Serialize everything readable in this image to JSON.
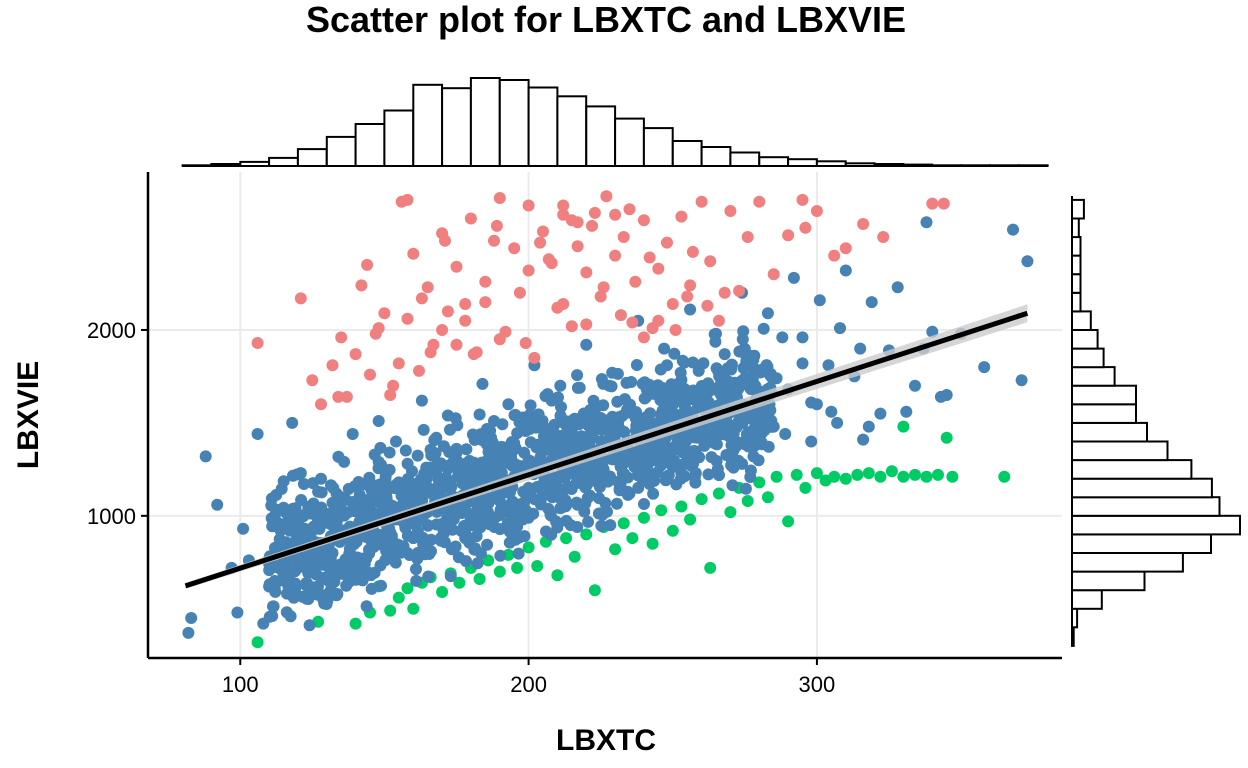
{
  "chart_data": {
    "type": "scatter",
    "title": "Scatter plot for LBXTC and LBXVIE",
    "xlabel": "LBXTC",
    "ylabel": "LBXVIE",
    "xlim": [
      68,
      385
    ],
    "ylim": [
      235,
      2850
    ],
    "x_ticks": [
      100,
      200,
      300
    ],
    "y_ticks": [
      1000,
      2000
    ],
    "grid": true,
    "legend": "none",
    "colors": {
      "high": "#f08080",
      "mid": "#4682b4",
      "low": "#00cc66",
      "regression": "#000000",
      "confidence_band": "#cccccc"
    },
    "regression_line": {
      "x": [
        81,
        373
      ],
      "y": [
        623,
        2090
      ]
    },
    "marginal_x_histogram": {
      "bin_edges": [
        80,
        90,
        100,
        110,
        120,
        130,
        140,
        150,
        160,
        170,
        180,
        190,
        200,
        210,
        220,
        230,
        240,
        250,
        260,
        270,
        280,
        290,
        300,
        310,
        320,
        330,
        340,
        350,
        360,
        370,
        380
      ],
      "counts": [
        1,
        3,
        6,
        12,
        25,
        43,
        62,
        82,
        120,
        115,
        130,
        127,
        116,
        103,
        88,
        70,
        56,
        37,
        28,
        20,
        13,
        10,
        7,
        4,
        3,
        2,
        1,
        1,
        1,
        1
      ]
    },
    "marginal_y_histogram": {
      "bin_edges": [
        300,
        400,
        500,
        600,
        700,
        800,
        900,
        1000,
        1100,
        1200,
        1300,
        1400,
        1500,
        1600,
        1700,
        1800,
        1900,
        2000,
        2100,
        2200,
        2300,
        2400,
        2500,
        2600,
        2700
      ],
      "counts": [
        2,
        6,
        35,
        85,
        130,
        163,
        197,
        173,
        164,
        140,
        112,
        88,
        75,
        75,
        50,
        37,
        30,
        22,
        10,
        10,
        10,
        10,
        8,
        14
      ]
    },
    "series": [
      {
        "group": "high",
        "x": [
          106,
          121,
          125,
          128,
          132,
          135,
          137,
          140,
          142,
          145,
          147,
          150,
          152,
          155,
          156,
          158,
          160,
          162,
          165,
          167,
          170,
          172,
          175,
          178,
          180,
          182,
          185,
          188,
          190,
          192,
          195,
          197,
          200,
          202,
          205,
          207,
          210,
          212,
          215,
          217,
          220,
          222,
          225,
          227,
          230,
          232,
          235,
          237,
          240,
          243,
          245,
          248,
          250,
          253,
          256,
          260,
          263,
          266,
          270,
          273,
          276,
          280,
          285,
          290,
          295,
          300,
          306,
          310,
          316,
          323,
          340,
          344,
          158,
          170,
          185,
          200,
          212,
          230,
          245,
          175,
          190,
          220,
          240,
          255,
          144,
          163,
          181,
          199,
          226,
          251,
          268,
          134,
          148,
          166,
          178,
          208,
          236,
          262,
          296,
          153,
          171,
          189,
          217,
          242,
          257,
          212,
          223,
          233,
          204,
          215
        ],
        "y": [
          1930,
          2170,
          1730,
          1600,
          1810,
          1960,
          1640,
          1870,
          2240,
          1760,
          1980,
          2090,
          1650,
          1820,
          2690,
          2060,
          2410,
          1780,
          2230,
          1920,
          2520,
          2100,
          2340,
          2050,
          2600,
          1880,
          2150,
          2480,
          2710,
          1990,
          2440,
          2200,
          2670,
          1850,
          2530,
          2380,
          2120,
          2620,
          2020,
          2450,
          2310,
          2560,
          2180,
          2720,
          2400,
          2080,
          2650,
          2260,
          2590,
          2010,
          2330,
          2470,
          2140,
          2610,
          2240,
          2690,
          2370,
          2050,
          2640,
          2210,
          2500,
          2690,
          2300,
          2510,
          2700,
          2640,
          2400,
          2440,
          2570,
          2500,
          2680,
          2680,
          2700,
          2000,
          2260,
          2320,
          2140,
          2620,
          2050,
          1920,
          1950,
          2030,
          1960,
          2180,
          2350,
          2170,
          1870,
          1930,
          2230,
          2000,
          2200,
          1640,
          2010,
          1880,
          2140,
          2360,
          2040,
          2130,
          2550,
          1700,
          2480,
          2560,
          2580,
          2390,
          2420,
          2670,
          2630,
          2500,
          2470,
          2590
        ]
      },
      {
        "group": "mid",
        "x": [
          82,
          83,
          88,
          92,
          97,
          99,
          101,
          103,
          106,
          108,
          112,
          115,
          118,
          119,
          121,
          124,
          127,
          130,
          133,
          136,
          139,
          142,
          145,
          148,
          151,
          154,
          157,
          160,
          163,
          166,
          169,
          172,
          175,
          178,
          181,
          184,
          187,
          190,
          193,
          196,
          199,
          202,
          205,
          208,
          211,
          214,
          217,
          220,
          223,
          226,
          229,
          232,
          235,
          238,
          241,
          244,
          247,
          250,
          253,
          256,
          259,
          262,
          265,
          268,
          271,
          274,
          277,
          280,
          283,
          286,
          289,
          292,
          295,
          298,
          301,
          304,
          307,
          310,
          313,
          316,
          319,
          322,
          325,
          328,
          331,
          334,
          337,
          340,
          345,
          350,
          358,
          368,
          371,
          373,
          338,
          343,
          130,
          150,
          170,
          190,
          210,
          230,
          250,
          270,
          290,
          140,
          160,
          180,
          200,
          220,
          240,
          260,
          280,
          300,
          125,
          145,
          165,
          185,
          205,
          225,
          245,
          265,
          285,
          305,
          135,
          155,
          175,
          195,
          215,
          235,
          255,
          275,
          295,
          315,
          118,
          138,
          158,
          178,
          198,
          218,
          238,
          258,
          278,
          298,
          318,
          128,
          148,
          168,
          188,
          208,
          228,
          248,
          268,
          288,
          308
        ],
        "y": [
          370,
          450,
          1320,
          1060,
          720,
          480,
          930,
          760,
          1440,
          420,
          1000,
          810,
          1500,
          960,
          1230,
          820,
          1130,
          1010,
          890,
          1290,
          1440,
          770,
          1180,
          1510,
          950,
          1400,
          1100,
          880,
          1620,
          1260,
          1050,
          1540,
          1360,
          940,
          1190,
          1710,
          1420,
          1080,
          1600,
          1270,
          990,
          1810,
          1480,
          1150,
          1700,
          1390,
          1060,
          1920,
          1570,
          1250,
          1770,
          1460,
          1120,
          2050,
          1680,
          1330,
          1900,
          1600,
          1230,
          2110,
          1780,
          1470,
          1980,
          1670,
          1350,
          2200,
          1860,
          1520,
          2090,
          1740,
          1440,
          2280,
          1960,
          1610,
          2160,
          1810,
          1500,
          2320,
          1750,
          1410,
          2150,
          1550,
          1890,
          2230,
          1560,
          1700,
          1900,
          1990,
          1650,
          1980,
          1800,
          2540,
          1730,
          2370,
          2580,
          1640,
          980,
          1050,
          1180,
          1260,
          1320,
          1400,
          1480,
          1580,
          1680,
          880,
          960,
          1080,
          1150,
          1250,
          1320,
          1420,
          1500,
          1600,
          750,
          820,
          950,
          1030,
          1120,
          1210,
          1300,
          1390,
          1480,
          1560,
          1100,
          1180,
          1300,
          1390,
          1480,
          1560,
          1650,
          1740,
          1820,
          1900,
          640,
          700,
          800,
          880,
          980,
          1060,
          1150,
          1230,
          1320,
          1400,
          1480,
          1200,
          1290,
          1420,
          1510,
          1620,
          1700,
          1810,
          1870,
          1960,
          2010
        ]
      },
      {
        "group": "low",
        "x": [
          106,
          127,
          140,
          145,
          148,
          152,
          155,
          158,
          160,
          163,
          166,
          170,
          173,
          176,
          180,
          183,
          186,
          190,
          193,
          196,
          200,
          203,
          206,
          210,
          213,
          216,
          220,
          223,
          226,
          230,
          233,
          236,
          240,
          243,
          246,
          250,
          253,
          256,
          260,
          263,
          266,
          270,
          273,
          276,
          280,
          283,
          286,
          290,
          293,
          296,
          300,
          303,
          306,
          310,
          314,
          318,
          322,
          326,
          330,
          334,
          338,
          342,
          347,
          365,
          330,
          345
        ],
        "y": [
          320,
          430,
          420,
          480,
          620,
          490,
          560,
          610,
          500,
          640,
          670,
          590,
          690,
          640,
          720,
          660,
          760,
          700,
          790,
          720,
          830,
          730,
          860,
          680,
          880,
          780,
          900,
          600,
          940,
          820,
          960,
          880,
          990,
          850,
          1030,
          920,
          1050,
          980,
          1090,
          720,
          1120,
          1020,
          1150,
          1080,
          1180,
          1100,
          1210,
          970,
          1220,
          1150,
          1230,
          1190,
          1210,
          1200,
          1220,
          1230,
          1210,
          1240,
          1210,
          1220,
          1210,
          1220,
          1210,
          1210,
          1480,
          1420
        ]
      }
    ]
  }
}
